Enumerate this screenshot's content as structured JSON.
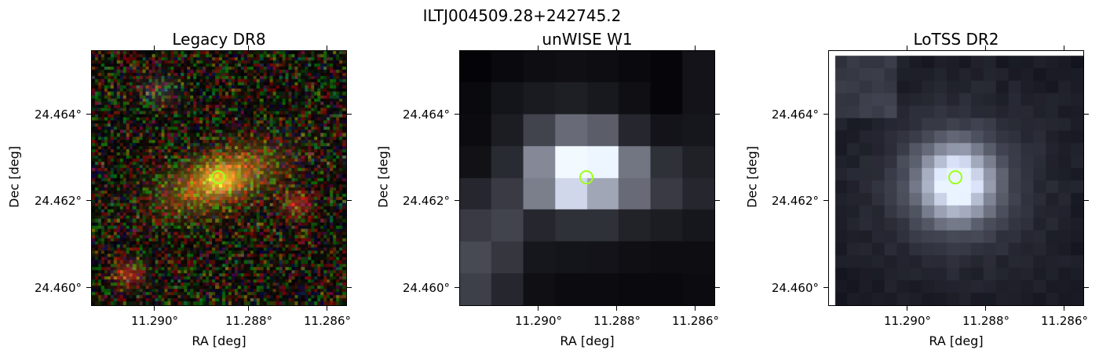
{
  "figure": {
    "title": "ILTJ004509.28+242745.2"
  },
  "panels": [
    {
      "title": "Legacy DR8",
      "xlabel": "RA [deg]",
      "ylabel": "Dec [deg]",
      "xticks": [
        "11.290°",
        "11.288°",
        "11.286°"
      ],
      "yticks": [
        "24.464°",
        "24.462°",
        "24.460°"
      ]
    },
    {
      "title": "unWISE W1",
      "xlabel": "RA [deg]",
      "ylabel": "Dec [deg]",
      "xticks": [
        "11.290°",
        "11.288°",
        "11.286°"
      ],
      "yticks": [
        "24.464°",
        "24.462°",
        "24.460°"
      ]
    },
    {
      "title": "LoTSS DR2",
      "xlabel": "RA [deg]",
      "ylabel": "Dec [deg]",
      "xticks": [
        "11.290°",
        "11.288°",
        "11.286°"
      ],
      "yticks": [
        "24.464°",
        "24.462°",
        "24.460°"
      ]
    }
  ],
  "colors": {
    "marker": "#9cff1c",
    "frame": "#000000"
  }
}
